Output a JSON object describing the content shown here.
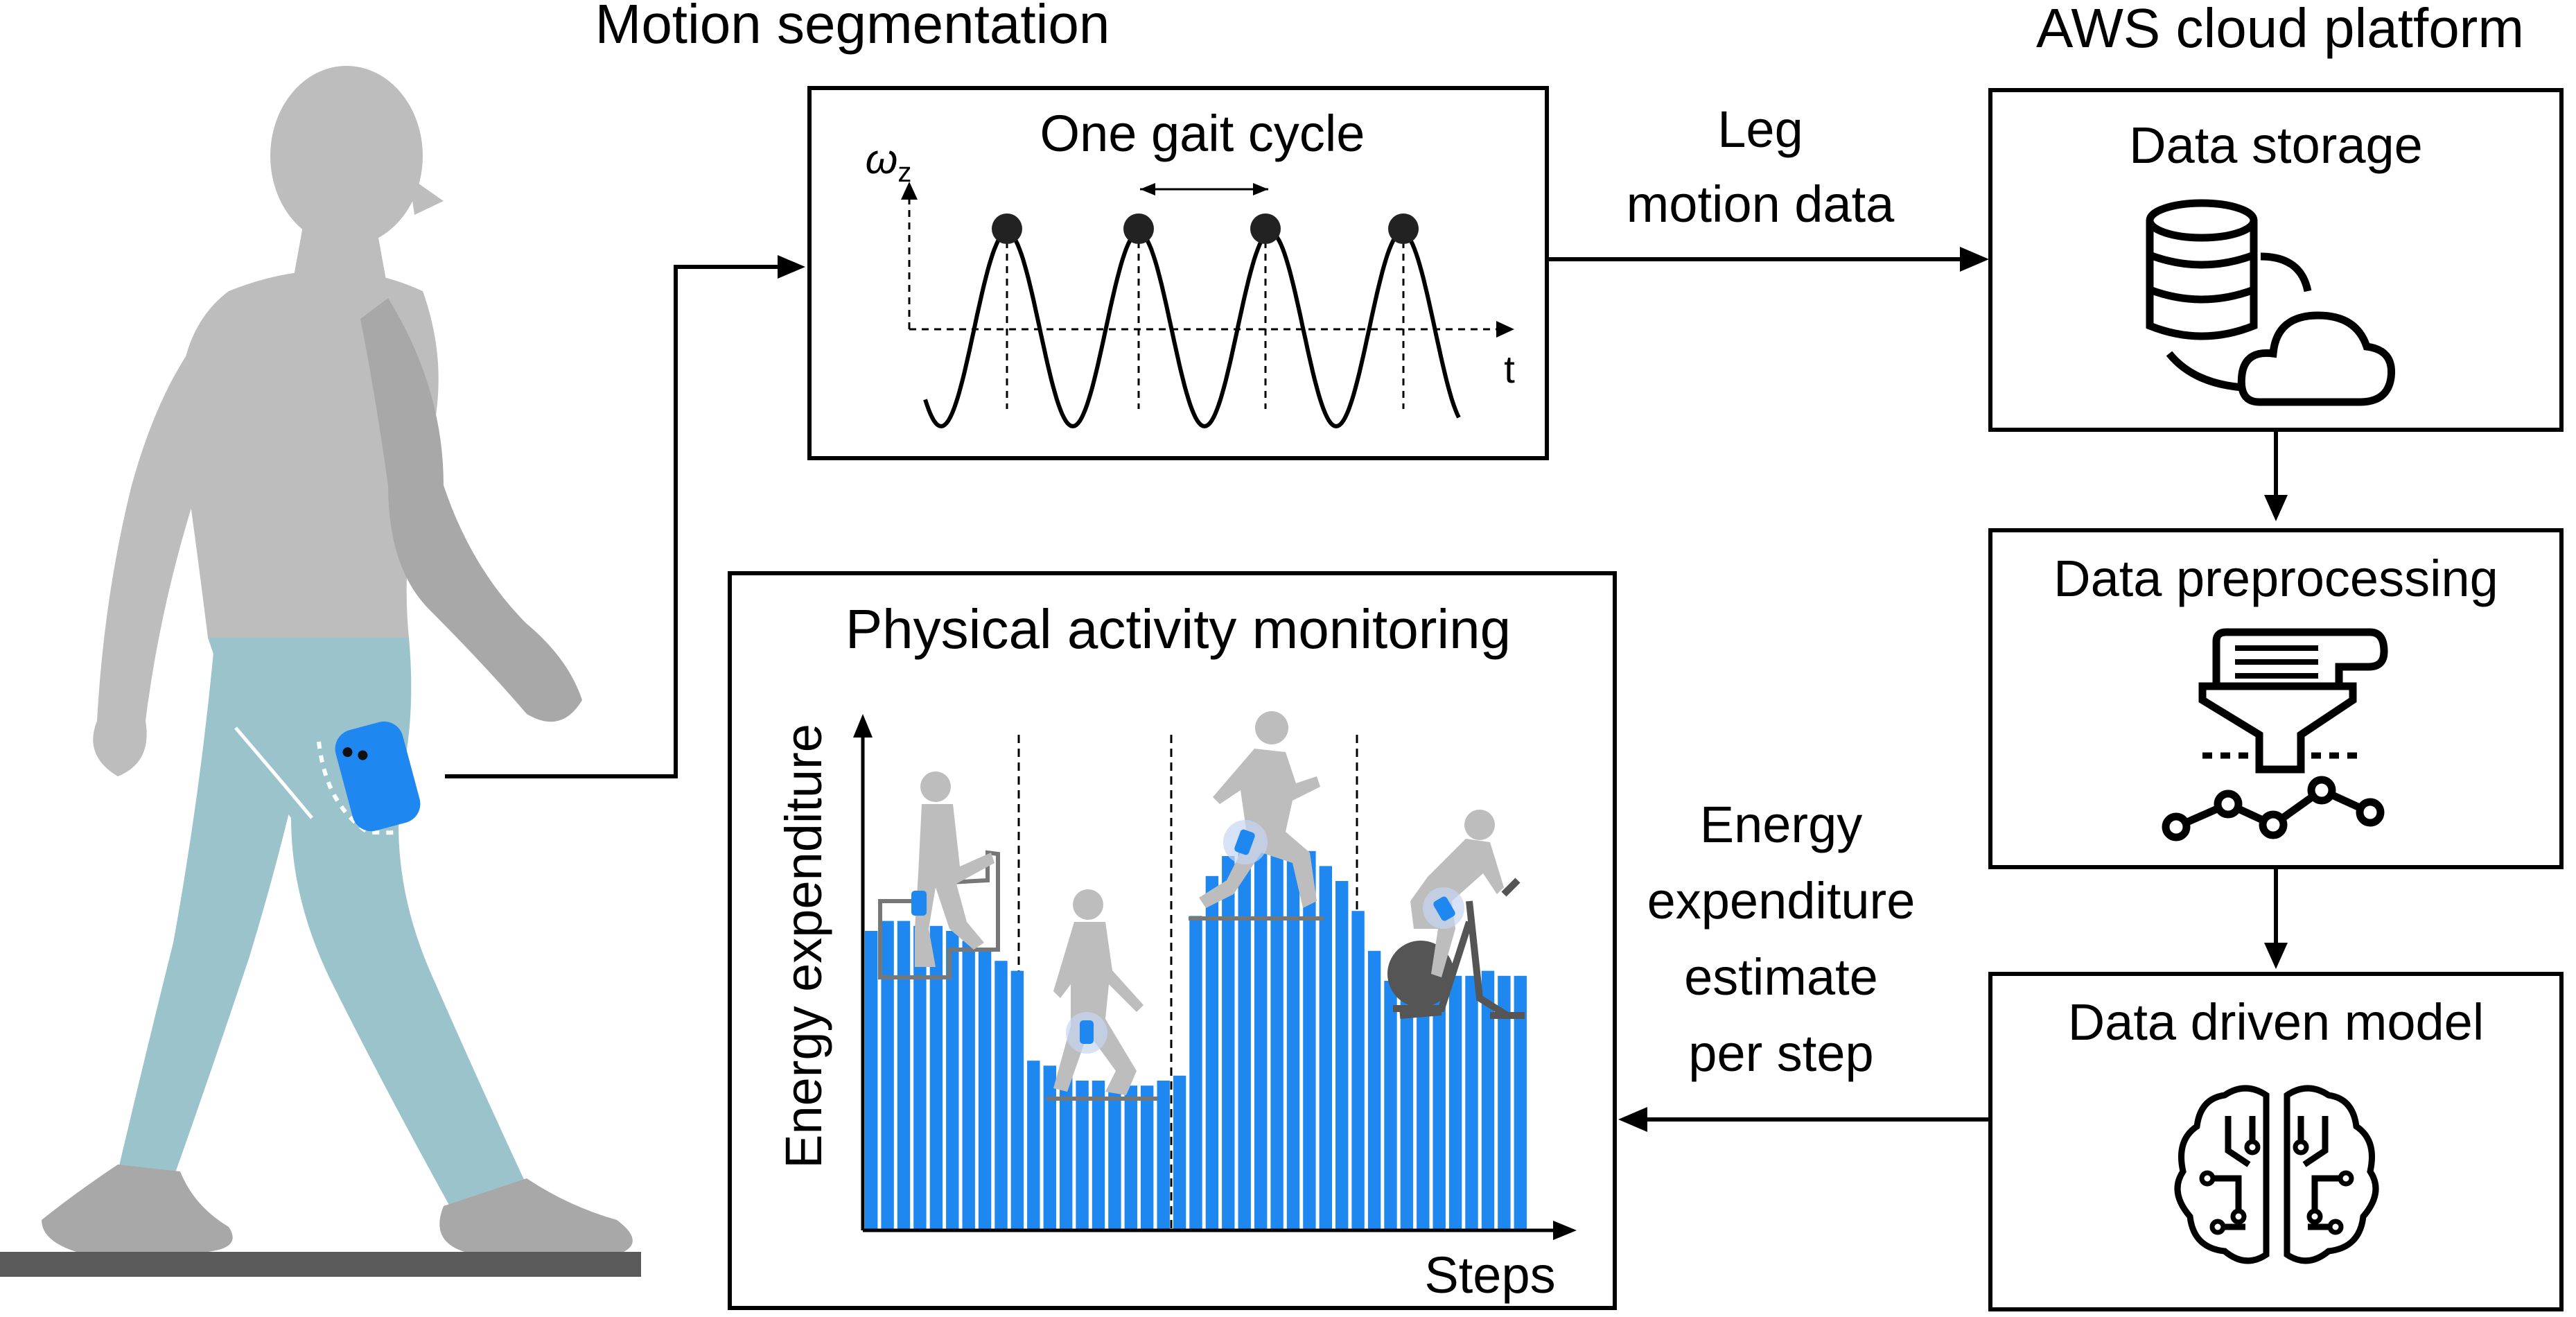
{
  "motion_segmentation": {
    "title": "Motion segmentation",
    "gait_label": "One gait cycle",
    "y_axis_symbol": "ω",
    "y_axis_subscript": "z",
    "x_axis_label": "t"
  },
  "aws": {
    "title": "AWS cloud platform",
    "storage": "Data storage",
    "preprocessing": "Data preprocessing",
    "model": "Data driven model"
  },
  "flows": {
    "leg_line1": "Leg",
    "leg_line2": "motion data",
    "energy_line1": "Energy",
    "energy_line2": "expenditure",
    "energy_line3": "estimate",
    "energy_line4": "per step"
  },
  "monitoring": {
    "title": "Physical activity monitoring",
    "y_label": "Energy expenditure",
    "x_label": "Steps"
  },
  "colors": {
    "phone_blue": "#1e88f0",
    "bar_blue": "#1e88f0",
    "pants": "#9bc3cc",
    "skin_gray": "#bdbdbd",
    "ground": "#5a5a5a"
  },
  "chart_data": {
    "type": "bar",
    "xlabel": "Steps",
    "ylabel": "Energy expenditure",
    "segments": [
      "stairs",
      "walking",
      "running",
      "cycling"
    ],
    "values": [
      0.6,
      0.62,
      0.62,
      0.61,
      0.61,
      0.6,
      0.58,
      0.56,
      0.54,
      0.52,
      0.34,
      0.33,
      0.31,
      0.3,
      0.3,
      0.29,
      0.29,
      0.29,
      0.3,
      0.31,
      0.63,
      0.71,
      0.75,
      0.76,
      0.77,
      0.78,
      0.77,
      0.76,
      0.73,
      0.7,
      0.64,
      0.56,
      0.5,
      0.52,
      0.53,
      0.52,
      0.51,
      0.51,
      0.52,
      0.51,
      0.51
    ]
  }
}
